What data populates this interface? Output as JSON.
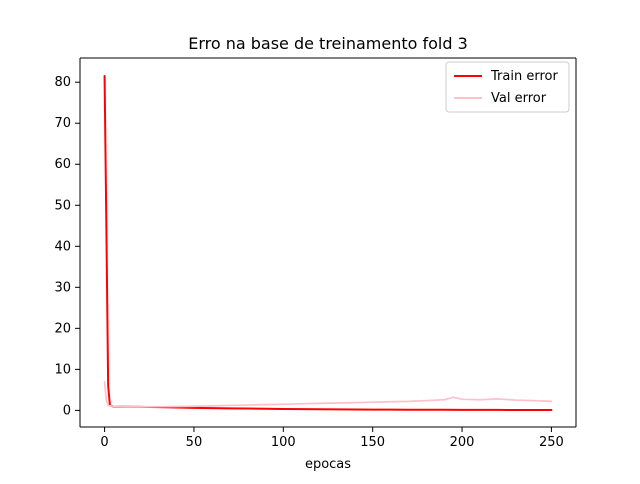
{
  "chart_data": {
    "type": "line",
    "title": "Erro na base de treinamento fold 3",
    "xlabel": "epocas",
    "ylabel": "",
    "xlim": [
      -13.75,
      263.75
    ],
    "ylim": [
      -4.05,
      85.9
    ],
    "x_ticks": [
      0,
      50,
      100,
      150,
      200,
      250
    ],
    "x_tick_labels": [
      "0",
      "50",
      "100",
      "150",
      "200",
      "250"
    ],
    "y_ticks": [
      0,
      10,
      20,
      30,
      40,
      50,
      60,
      70,
      80
    ],
    "y_tick_labels": [
      "0",
      "10",
      "20",
      "30",
      "40",
      "50",
      "60",
      "70",
      "80"
    ],
    "grid": false,
    "legend_position": "top-right",
    "series": [
      {
        "name": "Train error",
        "color": "#ff0000",
        "points": [
          [
            0,
            81.5
          ],
          [
            1,
            45.0
          ],
          [
            2,
            6.0
          ],
          [
            3,
            1.2
          ],
          [
            5,
            0.95
          ],
          [
            10,
            0.9
          ],
          [
            20,
            0.85
          ],
          [
            30,
            0.8
          ],
          [
            40,
            0.7
          ],
          [
            50,
            0.6
          ],
          [
            60,
            0.55
          ],
          [
            70,
            0.5
          ],
          [
            80,
            0.45
          ],
          [
            90,
            0.4
          ],
          [
            100,
            0.35
          ],
          [
            110,
            0.3
          ],
          [
            120,
            0.28
          ],
          [
            130,
            0.25
          ],
          [
            140,
            0.22
          ],
          [
            150,
            0.2
          ],
          [
            160,
            0.18
          ],
          [
            170,
            0.17
          ],
          [
            180,
            0.15
          ],
          [
            190,
            0.14
          ],
          [
            200,
            0.13
          ],
          [
            210,
            0.12
          ],
          [
            220,
            0.11
          ],
          [
            230,
            0.1
          ],
          [
            240,
            0.1
          ],
          [
            250,
            0.1
          ]
        ]
      },
      {
        "name": "Val error",
        "color": "#ffc0cb",
        "points": [
          [
            0,
            7.0
          ],
          [
            1,
            2.5
          ],
          [
            2,
            1.2
          ],
          [
            5,
            1.0
          ],
          [
            10,
            0.9
          ],
          [
            20,
            0.85
          ],
          [
            30,
            0.9
          ],
          [
            40,
            0.95
          ],
          [
            50,
            1.0
          ],
          [
            60,
            1.1
          ],
          [
            70,
            1.2
          ],
          [
            80,
            1.3
          ],
          [
            90,
            1.4
          ],
          [
            100,
            1.5
          ],
          [
            110,
            1.6
          ],
          [
            120,
            1.7
          ],
          [
            130,
            1.8
          ],
          [
            140,
            1.9
          ],
          [
            150,
            2.0
          ],
          [
            160,
            2.1
          ],
          [
            170,
            2.2
          ],
          [
            180,
            2.4
          ],
          [
            190,
            2.6
          ],
          [
            195,
            3.2
          ],
          [
            200,
            2.7
          ],
          [
            210,
            2.6
          ],
          [
            220,
            2.8
          ],
          [
            230,
            2.5
          ],
          [
            240,
            2.4
          ],
          [
            250,
            2.2
          ]
        ]
      }
    ]
  }
}
